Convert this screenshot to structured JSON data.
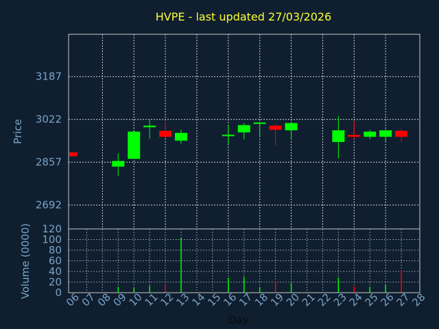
{
  "chart_data": [
    {
      "type": "candlestick",
      "title": "HVPE - last updated 27/03/2026",
      "ylabel": "Price",
      "ylim": [
        2600,
        3350
      ],
      "yticks": [
        "2692",
        "2857",
        "3022",
        "3187"
      ],
      "grid": true,
      "up_color": "#00ff00",
      "down_color": "#ff0000",
      "candles": [
        {
          "day": "06",
          "open": 2895,
          "close": 2880,
          "high": 2895,
          "low": 2880
        },
        {
          "day": "09",
          "open": 2840,
          "close": 2862,
          "high": 2892,
          "low": 2805
        },
        {
          "day": "10",
          "open": 2870,
          "close": 2975,
          "high": 2975,
          "low": 2870
        },
        {
          "day": "11",
          "open": 2992,
          "close": 2998,
          "high": 3022,
          "low": 2948
        },
        {
          "day": "12",
          "open": 2978,
          "close": 2955,
          "high": 3012,
          "low": 2950
        },
        {
          "day": "13",
          "open": 2940,
          "close": 2970,
          "high": 2982,
          "low": 2928
        },
        {
          "day": "16",
          "open": 2960,
          "close": 2963,
          "high": 2998,
          "low": 2925
        },
        {
          "day": "17",
          "open": 2972,
          "close": 3000,
          "high": 3008,
          "low": 2945
        },
        {
          "day": "18",
          "open": 3006,
          "close": 3010,
          "high": 3012,
          "low": 2955
        },
        {
          "day": "19",
          "open": 2998,
          "close": 2982,
          "high": 3003,
          "low": 2922
        },
        {
          "day": "20",
          "open": 2980,
          "close": 3008,
          "high": 3010,
          "low": 2944
        },
        {
          "day": "23",
          "open": 2935,
          "close": 2980,
          "high": 3035,
          "low": 2872
        },
        {
          "day": "24",
          "open": 2962,
          "close": 2955,
          "high": 3015,
          "low": 2945
        },
        {
          "day": "25",
          "open": 2955,
          "close": 2975,
          "high": 2982,
          "low": 2945
        },
        {
          "day": "26",
          "open": 2955,
          "close": 2980,
          "high": 2983,
          "low": 2935
        },
        {
          "day": "27",
          "open": 2978,
          "close": 2955,
          "high": 2985,
          "low": 2935
        }
      ]
    },
    {
      "type": "bar",
      "ylabel": "Volume (0000)",
      "xlabel": "Day",
      "ylim": [
        0,
        120
      ],
      "yticks": [
        "0",
        "20",
        "40",
        "60",
        "80",
        "100",
        "120"
      ],
      "categories": [
        "06",
        "07",
        "08",
        "09",
        "10",
        "11",
        "12",
        "13",
        "14",
        "15",
        "16",
        "17",
        "18",
        "19",
        "20",
        "21",
        "22",
        "23",
        "24",
        "25",
        "26",
        "27",
        "28"
      ],
      "values": [
        0,
        0,
        0,
        11,
        9,
        13,
        16,
        103,
        0,
        0,
        28,
        29,
        10,
        22,
        18,
        0,
        0,
        28,
        12,
        11,
        15,
        42,
        0
      ],
      "bar_colors": [
        "#00ff00",
        "#00ff00",
        "#00ff00",
        "#00ff00",
        "#00ff00",
        "#00ff00",
        "#ff0000",
        "#00ff00",
        "#00ff00",
        "#00ff00",
        "#00ff00",
        "#00ff00",
        "#00ff00",
        "#ff0000",
        "#00ff00",
        "#00ff00",
        "#00ff00",
        "#00ff00",
        "#ff0000",
        "#00ff00",
        "#00ff00",
        "#ff0000",
        "#00ff00"
      ],
      "grid": true
    }
  ]
}
